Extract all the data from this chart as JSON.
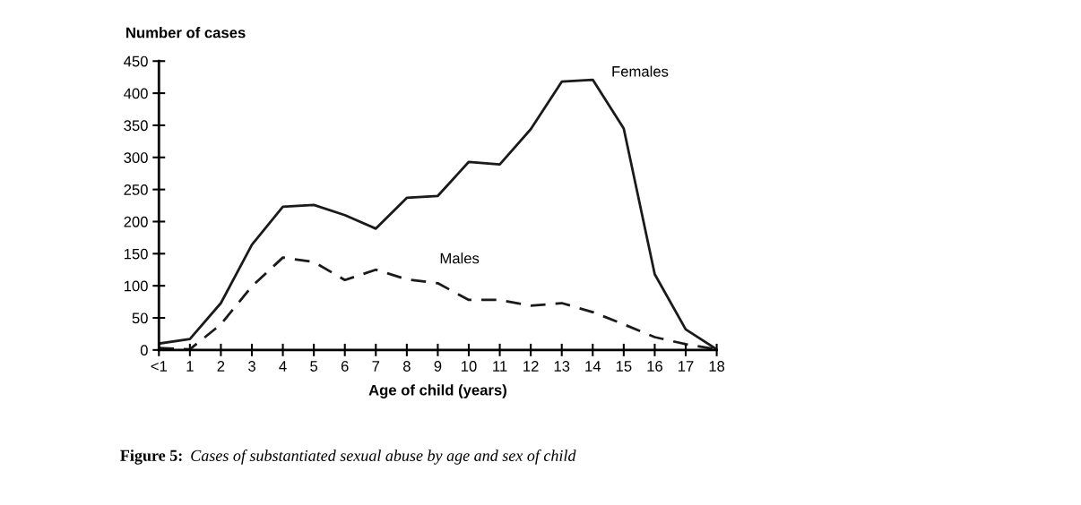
{
  "chart_data": {
    "type": "line",
    "ylabel": "Number of cases",
    "xlabel": "Age of child (years)",
    "categories": [
      "<1",
      "1",
      "2",
      "3",
      "4",
      "5",
      "6",
      "7",
      "8",
      "9",
      "10",
      "11",
      "12",
      "13",
      "14",
      "15",
      "16",
      "17",
      "18"
    ],
    "series": [
      {
        "name": "Females",
        "color": "#1a1a1a",
        "line_style": "solid",
        "values": [
          10,
          17,
          73,
          164,
          223,
          226,
          210,
          189,
          237,
          240,
          293,
          289,
          344,
          418,
          421,
          345,
          118,
          32,
          1
        ]
      },
      {
        "name": "Males",
        "color": "#1a1a1a",
        "line_style": "dashed",
        "values": [
          3,
          1,
          40,
          99,
          144,
          137,
          109,
          125,
          110,
          104,
          78,
          78,
          69,
          73,
          59,
          40,
          20,
          9,
          1
        ]
      }
    ],
    "ylim": [
      0,
      450
    ],
    "yticks": [
      0,
      50,
      100,
      150,
      200,
      250,
      300,
      350,
      400,
      450
    ],
    "grid": false,
    "legend": false,
    "marker": "none",
    "annotations": [
      "Figure 5: Cases of substantiated sexual abuse by age and sex of child"
    ]
  }
}
